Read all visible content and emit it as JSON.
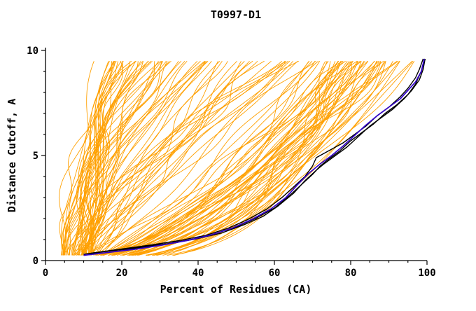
{
  "figure": {
    "background": "#ffffff"
  },
  "chart_data": {
    "type": "line",
    "title": "T0997-D1",
    "xlabel": "Percent of Residues (CA)",
    "ylabel": "Distance Cutoff, A",
    "xlim": [
      0,
      100
    ],
    "ylim": [
      0,
      10
    ],
    "xticks": [
      0,
      20,
      40,
      60,
      80,
      100
    ],
    "x_minor_step": 5,
    "yticks": [
      0,
      5,
      10
    ],
    "y_minor_step": 1,
    "grid": false,
    "legend": "none",
    "axis_color": "#000000",
    "series": [
      {
        "name": "best-model-black-1",
        "color": "#000000",
        "stroke_width": 1.4,
        "points": [
          [
            10,
            0.3
          ],
          [
            16,
            0.45
          ],
          [
            22,
            0.55
          ],
          [
            28,
            0.7
          ],
          [
            34,
            0.85
          ],
          [
            40,
            1.05
          ],
          [
            46,
            1.3
          ],
          [
            52,
            1.7
          ],
          [
            57,
            2.1
          ],
          [
            61,
            2.6
          ],
          [
            65,
            3.2
          ],
          [
            68,
            3.8
          ],
          [
            71,
            4.3
          ],
          [
            73,
            4.6
          ],
          [
            76,
            5.0
          ],
          [
            79,
            5.4
          ],
          [
            82,
            5.9
          ],
          [
            85,
            6.4
          ],
          [
            88,
            6.8
          ],
          [
            91,
            7.2
          ],
          [
            94,
            7.7
          ],
          [
            96,
            8.1
          ],
          [
            98,
            8.6
          ],
          [
            99,
            9.1
          ],
          [
            99.5,
            9.6
          ]
        ]
      },
      {
        "name": "best-model-black-2",
        "color": "#000000",
        "stroke_width": 1.4,
        "points": [
          [
            11,
            0.3
          ],
          [
            18,
            0.5
          ],
          [
            25,
            0.65
          ],
          [
            32,
            0.8
          ],
          [
            38,
            1.0
          ],
          [
            44,
            1.25
          ],
          [
            50,
            1.6
          ],
          [
            55,
            2.0
          ],
          [
            60,
            2.5
          ],
          [
            64,
            3.1
          ],
          [
            67,
            3.6
          ],
          [
            70,
            4.1
          ],
          [
            72,
            4.5
          ],
          [
            74,
            4.8
          ],
          [
            77,
            5.2
          ],
          [
            80,
            5.7
          ],
          [
            83,
            6.1
          ],
          [
            86,
            6.5
          ],
          [
            89,
            7.0
          ],
          [
            92,
            7.4
          ],
          [
            95,
            7.9
          ],
          [
            97,
            8.4
          ],
          [
            98.5,
            9.0
          ],
          [
            99.5,
            9.6
          ]
        ]
      },
      {
        "name": "best-model-black-3",
        "color": "#000000",
        "stroke_width": 1.4,
        "points": [
          [
            12,
            0.35
          ],
          [
            20,
            0.55
          ],
          [
            28,
            0.75
          ],
          [
            35,
            0.95
          ],
          [
            42,
            1.2
          ],
          [
            48,
            1.55
          ],
          [
            53,
            1.95
          ],
          [
            58,
            2.45
          ],
          [
            62,
            3.0
          ],
          [
            65,
            3.5
          ],
          [
            68,
            4.0
          ],
          [
            70,
            4.5
          ],
          [
            71,
            4.9
          ],
          [
            74,
            5.2
          ],
          [
            78,
            5.6
          ],
          [
            81,
            6.0
          ],
          [
            84,
            6.4
          ],
          [
            87,
            6.9
          ],
          [
            90,
            7.3
          ],
          [
            93,
            7.8
          ],
          [
            95,
            8.2
          ],
          [
            97,
            8.7
          ],
          [
            98,
            9.1
          ],
          [
            99,
            9.6
          ]
        ]
      },
      {
        "name": "highlight-blue",
        "color": "#3300cc",
        "stroke_width": 1.7,
        "points": [
          [
            10,
            0.25
          ],
          [
            17,
            0.4
          ],
          [
            24,
            0.55
          ],
          [
            31,
            0.75
          ],
          [
            37,
            0.95
          ],
          [
            43,
            1.2
          ],
          [
            49,
            1.55
          ],
          [
            54,
            1.95
          ],
          [
            59,
            2.45
          ],
          [
            63,
            3.0
          ],
          [
            66,
            3.6
          ],
          [
            69,
            4.15
          ],
          [
            72,
            4.6
          ],
          [
            75,
            5.0
          ],
          [
            78,
            5.45
          ],
          [
            81,
            5.95
          ],
          [
            84,
            6.45
          ],
          [
            87,
            6.9
          ],
          [
            90,
            7.3
          ],
          [
            93,
            7.7
          ],
          [
            95,
            8.1
          ],
          [
            97,
            8.5
          ],
          [
            98.5,
            9.0
          ],
          [
            99.3,
            9.6
          ]
        ]
      }
    ],
    "ensemble": {
      "name": "model-curves",
      "description": "Dense bundle of ~130 orange model curves; exact values not readable, drawn procedurally to match envelope",
      "color": "#ffa000",
      "count": 130,
      "seed": 11,
      "stroke_width": 0.9,
      "start_x_range": [
        4,
        13
      ],
      "y_start": 0.25,
      "y_end": 9.55,
      "classes": [
        {
          "weight": 0.3,
          "end_x_range": [
            15,
            45
          ],
          "shape_exp_range": [
            1.3,
            3.0
          ]
        },
        {
          "weight": 0.25,
          "end_x_range": [
            40,
            75
          ],
          "shape_exp_range": [
            0.8,
            1.7
          ]
        },
        {
          "weight": 0.45,
          "end_x_range": [
            70,
            100
          ],
          "shape_exp_range": [
            0.3,
            0.8
          ]
        }
      ],
      "wiggle_amp_range": [
        0.5,
        2.5
      ]
    }
  }
}
